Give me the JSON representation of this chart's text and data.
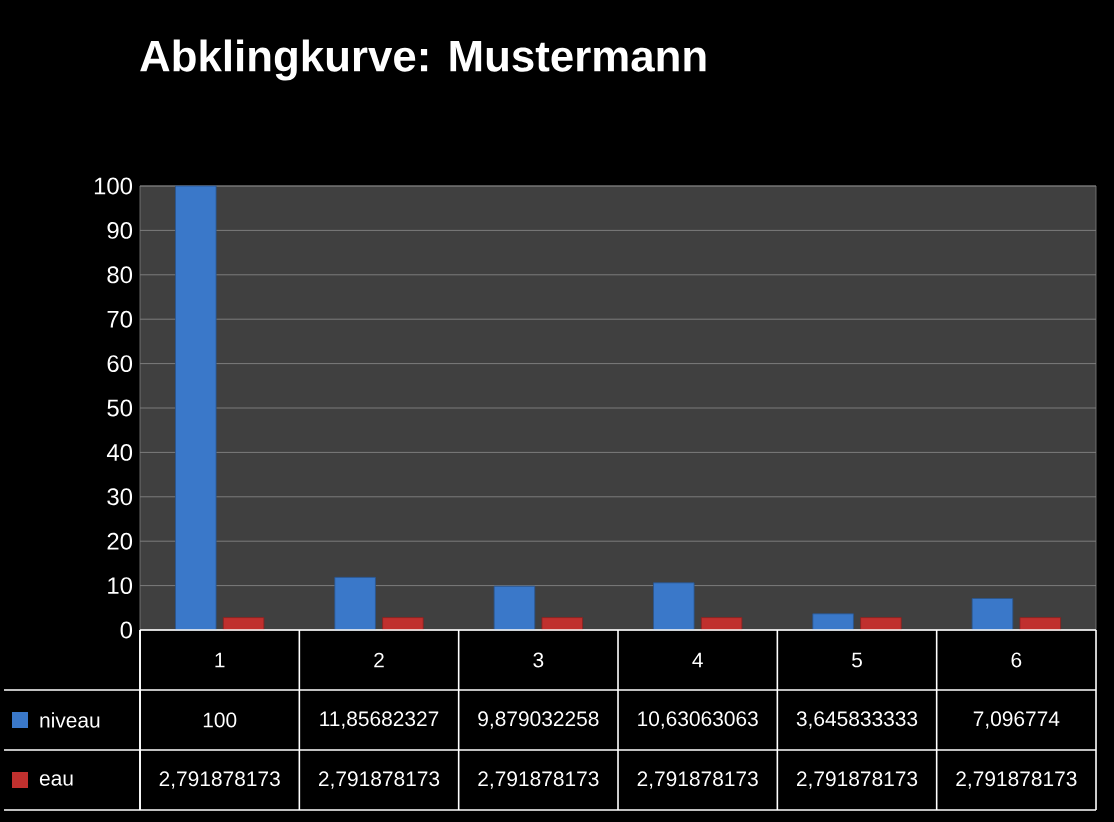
{
  "chart_data": {
    "type": "bar",
    "title": "Abklingkurve: Mustermann",
    "categories": [
      "1",
      "2",
      "3",
      "4",
      "5",
      "6"
    ],
    "series": [
      {
        "name": "niveau",
        "color": "#3a78c9",
        "values": [
          100,
          11.85682327,
          9.879032258,
          10.63063063,
          3.645833333,
          7.096774
        ],
        "value_labels": [
          "100",
          "11,85682327",
          "9,879032258",
          "10,63063063",
          "3,645833333",
          "7,096774"
        ]
      },
      {
        "name": "eau",
        "color": "#c0302e",
        "values": [
          2.791878173,
          2.791878173,
          2.791878173,
          2.791878173,
          2.791878173,
          2.791878173
        ],
        "value_labels": [
          "2,791878173",
          "2,791878173",
          "2,791878173",
          "2,791878173",
          "2,791878173",
          "2,791878173"
        ]
      }
    ],
    "ylim": [
      0,
      100
    ],
    "yticks": [
      0,
      10,
      20,
      30,
      40,
      50,
      60,
      70,
      80,
      90,
      100
    ],
    "grid": "y",
    "legend": "bottom left"
  }
}
